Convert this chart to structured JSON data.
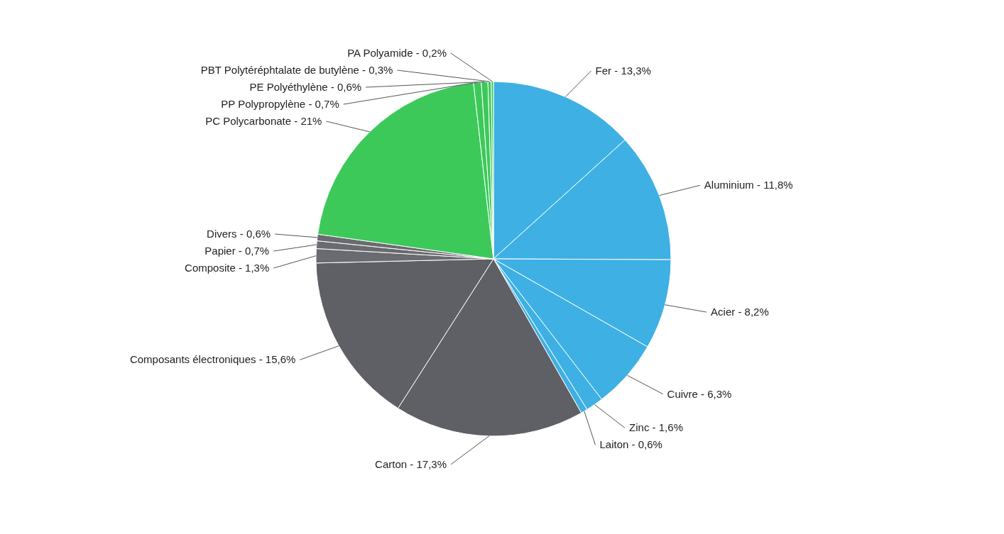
{
  "chart_data": {
    "type": "pie",
    "categories": [
      "Fer",
      "Aluminium",
      "Acier",
      "Cuivre",
      "Zinc",
      "Laiton",
      "Carton",
      "Composants électroniques",
      "Composite",
      "Papier",
      "Divers",
      "PC Polycarbonate",
      "PP Polypropylène",
      "PE Polyéthylène",
      "PBT Polytéréphtalate de butylène",
      "PA Polyamide"
    ],
    "values": [
      13.3,
      11.8,
      8.2,
      6.3,
      1.6,
      0.6,
      17.3,
      15.6,
      1.3,
      0.7,
      0.6,
      21,
      0.7,
      0.6,
      0.3,
      0.2
    ],
    "value_labels": [
      "13,3%",
      "11,8%",
      "8,2%",
      "6,3%",
      "1,6%",
      "0,6%",
      "17,3%",
      "15,6%",
      "1,3%",
      "0,7%",
      "0,6%",
      "21%",
      "0,7%",
      "0,6%",
      "0,3%",
      "0,2%"
    ],
    "colors": [
      "#3eb0e4",
      "#3eb0e4",
      "#3eb0e4",
      "#3eb0e4",
      "#3eb0e4",
      "#3eb0e4",
      "#5f6066",
      "#5f6066",
      "#6a6b70",
      "#6a6b70",
      "#6a6b70",
      "#3cc95a",
      "#3cc95a",
      "#3cc95a",
      "#3cc95a",
      "#3cc95a"
    ]
  }
}
